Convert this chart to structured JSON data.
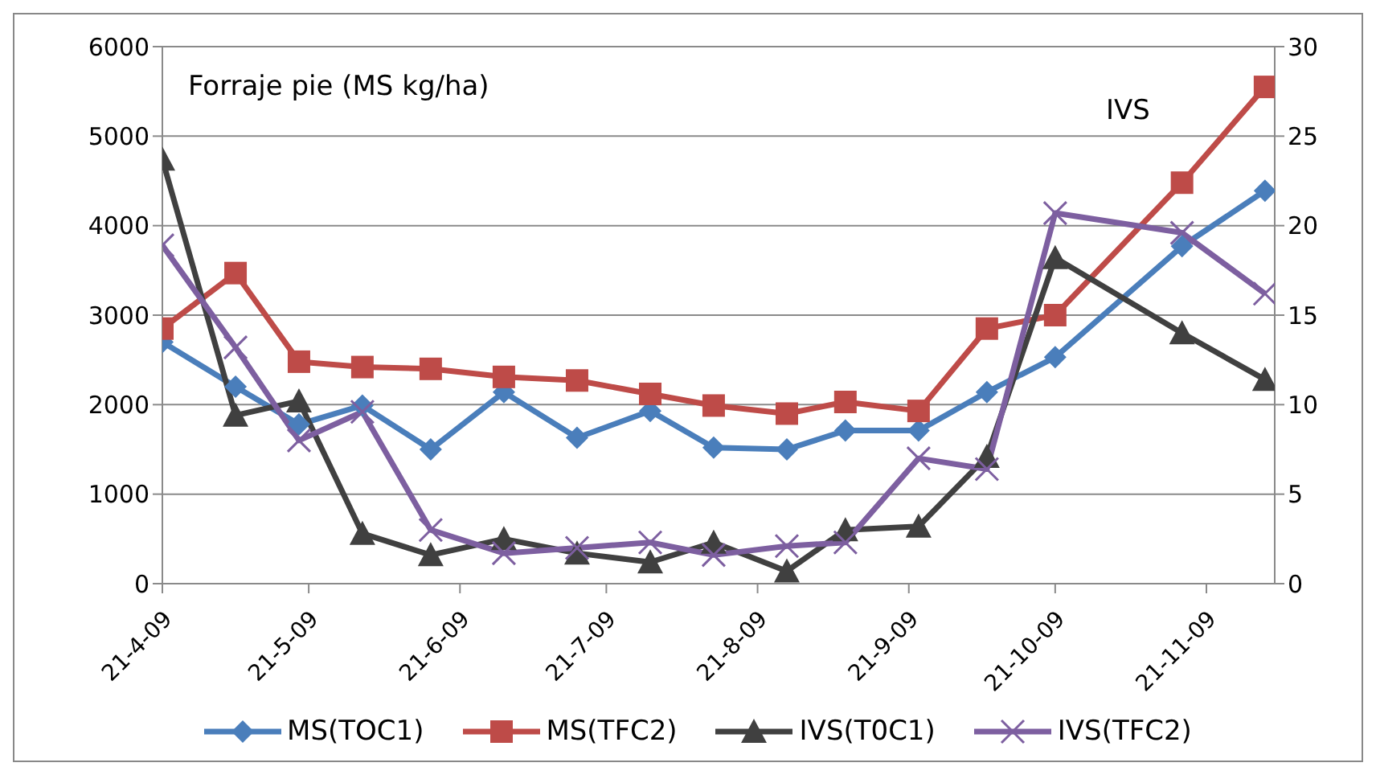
{
  "chart_data": {
    "type": "line",
    "ylabel": "Forraje pie (MS kg/ha)",
    "y2label": "IVS",
    "x": [
      "2009-04-21",
      "2009-05-06",
      "2009-05-19",
      "2009-06-01",
      "2009-06-15",
      "2009-06-30",
      "2009-07-15",
      "2009-07-30",
      "2009-08-12",
      "2009-08-27",
      "2009-09-08",
      "2009-09-23",
      "2009-10-07",
      "2009-10-21",
      "2009-11-16",
      "2009-12-03"
    ],
    "series": [
      {
        "name": "MS(TOC1)",
        "color": "#4a7ebb",
        "marker": "diamond",
        "values": [
          2700,
          2200,
          1780,
          1990,
          1500,
          2140,
          1630,
          1930,
          1520,
          1500,
          1710,
          1710,
          2140,
          2530,
          3770,
          4390
        ]
      },
      {
        "name": "MS(TFC2)",
        "color": "#be4b48",
        "marker": "square",
        "values": [
          2850,
          3470,
          2480,
          2420,
          2400,
          2310,
          2270,
          2120,
          1990,
          1900,
          2030,
          1930,
          2850,
          3000,
          4480,
          5550
        ]
      },
      {
        "name": "IVS(T0C1)",
        "color": "#404040",
        "marker": "triangle",
        "axis": "y2",
        "values": [
          23.7,
          9.4,
          10.2,
          2.8,
          1.6,
          2.5,
          1.7,
          1.2,
          2.3,
          0.7,
          3.0,
          3.2,
          7.1,
          18.2,
          14.0,
          11.4
        ]
      },
      {
        "name": "IVS(TFC2)",
        "color": "#7d5fa0",
        "marker": "cross",
        "axis": "y2",
        "values": [
          18.9,
          13.2,
          8.0,
          9.6,
          3.0,
          1.7,
          2.0,
          2.3,
          1.6,
          2.1,
          2.3,
          7.0,
          6.4,
          20.7,
          19.6,
          16.2
        ]
      }
    ],
    "xlim": [
      "2009-04-21",
      "2009-12-05"
    ],
    "xticks": [
      {
        "value": "2009-04-21",
        "label": "21-4-09"
      },
      {
        "value": "2009-05-21",
        "label": "21-5-09"
      },
      {
        "value": "2009-06-21",
        "label": "21-6-09"
      },
      {
        "value": "2009-07-21",
        "label": "21-7-09"
      },
      {
        "value": "2009-08-21",
        "label": "21-8-09"
      },
      {
        "value": "2009-09-21",
        "label": "21-9-09"
      },
      {
        "value": "2009-10-21",
        "label": "21-10-09"
      },
      {
        "value": "2009-11-21",
        "label": "21-11-09"
      }
    ],
    "ylim": [
      0,
      6000
    ],
    "yticks": [
      0,
      1000,
      2000,
      3000,
      4000,
      5000,
      6000
    ],
    "y2lim": [
      0,
      30
    ],
    "y2ticks": [
      0,
      5,
      10,
      15,
      20,
      25,
      30
    ],
    "grid": "y",
    "legend": "bottom",
    "line_style": "solid"
  }
}
